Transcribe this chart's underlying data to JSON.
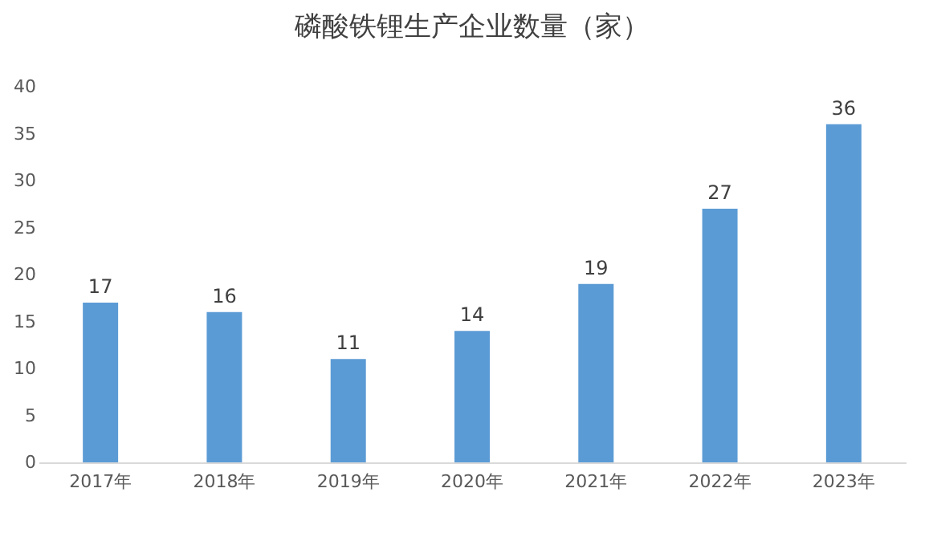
{
  "chart_data": {
    "type": "bar",
    "title": "磷酸铁锂生产企业数量（家）",
    "categories": [
      "2017年",
      "2018年",
      "2019年",
      "2020年",
      "2021年",
      "2022年",
      "2023年"
    ],
    "values": [
      17,
      16,
      11,
      14,
      19,
      27,
      36
    ],
    "color": "#5b9bd5",
    "ylim": [
      0,
      40
    ],
    "yticks": [
      0,
      5,
      10,
      15,
      20,
      25,
      30,
      35,
      40
    ],
    "grid": false,
    "data_labels": true
  }
}
